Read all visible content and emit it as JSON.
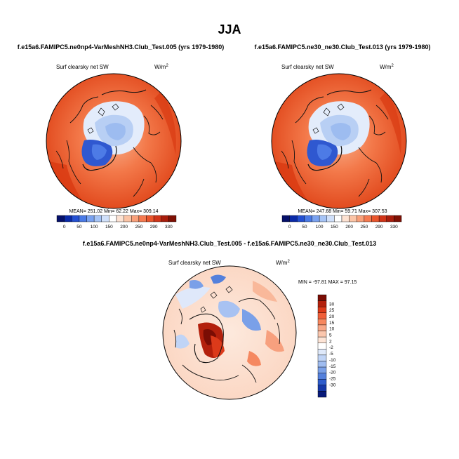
{
  "page_title": "JJA",
  "colors": {
    "coast": "#111111",
    "border": "#000000",
    "blue_deep": "#2a52c8",
    "blue_mid": "#6e9be8",
    "blue_light": "#b7cff4",
    "white": "#ffffff",
    "red_light": "#f8c2a2",
    "red_mid": "#f26a3e",
    "red_deep": "#d83a12",
    "diff_dark_red": "#8a1e0c"
  },
  "chart_data": [
    {
      "type": "heatmap",
      "projection": "polar-stereographic-north",
      "title": "f.e15a6.FAMIPC5.ne0np4-VarMeshNH3.Club_Test.005 (yrs 1979-1980)",
      "variable": "Surf clearsky net SW",
      "units_base": "W/m",
      "units_exp": "2",
      "stats_text": "MEAN= 251.02  Min=  62.22  Max= 309.14",
      "stats": {
        "mean": 251.02,
        "min": 62.22,
        "max": 309.14
      },
      "colorbar": {
        "orientation": "horizontal",
        "colors": [
          "#05106a",
          "#0a2aa8",
          "#2450d2",
          "#4a7ae6",
          "#7aa2f0",
          "#a6c4f6",
          "#d0e0fa",
          "#ffffff",
          "#fde2d2",
          "#fbc4a6",
          "#f9a07a",
          "#f57a50",
          "#e9552c",
          "#d03418",
          "#a81d0c",
          "#7e1004"
        ],
        "tick_labels": [
          "0",
          "50",
          "100",
          "150",
          "200",
          "250",
          "290",
          "330"
        ]
      }
    },
    {
      "type": "heatmap",
      "projection": "polar-stereographic-north",
      "title": "f.e15a6.FAMIPC5.ne30_ne30.Club_Test.013 (yrs 1979-1980)",
      "variable": "Surf clearsky net SW",
      "units_base": "W/m",
      "units_exp": "2",
      "stats_text": "MEAN= 247.68  Min=  59.71  Max= 307.53",
      "stats": {
        "mean": 247.68,
        "min": 59.71,
        "max": 307.53
      },
      "colorbar": {
        "orientation": "horizontal",
        "colors": [
          "#05106a",
          "#0a2aa8",
          "#2450d2",
          "#4a7ae6",
          "#7aa2f0",
          "#a6c4f6",
          "#d0e0fa",
          "#ffffff",
          "#fde2d2",
          "#fbc4a6",
          "#f9a07a",
          "#f57a50",
          "#e9552c",
          "#d03418",
          "#a81d0c",
          "#7e1004"
        ],
        "tick_labels": [
          "0",
          "50",
          "100",
          "150",
          "200",
          "250",
          "290",
          "330"
        ]
      }
    },
    {
      "type": "heatmap",
      "projection": "polar-stereographic-north",
      "title": "f.e15a6.FAMIPC5.ne0np4-VarMeshNH3.Club_Test.005 - f.e15a6.FAMIPC5.ne30_ne30.Club_Test.013",
      "variable": "Surf clearsky net SW",
      "units_base": "W/m",
      "units_exp": "2",
      "stats_text": "MIN = -97.81  MAX =  97.15",
      "stats": {
        "min": -97.81,
        "max": 97.15
      },
      "colorbar": {
        "orientation": "vertical",
        "colors_top_to_bottom": [
          "#7a0d04",
          "#b3200c",
          "#dc3a1a",
          "#f0603a",
          "#f7875e",
          "#f9a888",
          "#fbc7ae",
          "#fde4d6",
          "#ffffff",
          "#dfe9fa",
          "#c0d4f6",
          "#9fbcf0",
          "#7aa0e8",
          "#5480dc",
          "#2e5ccc",
          "#1538a8",
          "#081a7a"
        ],
        "tick_labels": [
          "30",
          "25",
          "20",
          "15",
          "10",
          "5",
          "2",
          "-2",
          "-5",
          "-10",
          "-15",
          "-20",
          "-25",
          "-30"
        ]
      }
    }
  ]
}
